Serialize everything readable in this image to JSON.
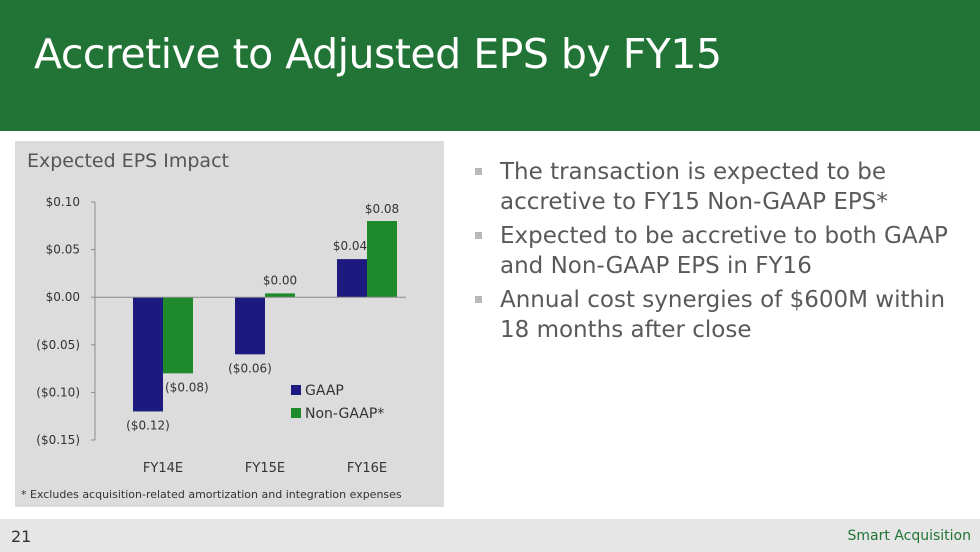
{
  "slide": {
    "title": "Accretive to Adjusted EPS by FY15",
    "page_number": "21",
    "footer_label": "Smart Acquisition",
    "bullets": [
      "The transaction is expected to be accretive to FY15 Non-GAAP EPS*",
      "Expected to be accretive to both GAAP and Non-GAAP EPS in FY16",
      "Annual cost synergies of $600M within 18 months after close"
    ],
    "footnote": "* Excludes acquisition-related amortization and integration expenses",
    "colors": {
      "header": "#217435",
      "gaap": "#1c1a7e",
      "non_gaap": "#1e8a2c"
    }
  },
  "chart_data": {
    "type": "bar",
    "title": "Expected EPS Impact",
    "categories": [
      "FY14E",
      "FY15E",
      "FY16E"
    ],
    "series": [
      {
        "name": "GAAP",
        "values": [
          -0.12,
          -0.06,
          0.04
        ],
        "labels": [
          "($0.12)",
          "($0.06)",
          "$0.04"
        ],
        "color": "#1c1a7e"
      },
      {
        "name": "Non-GAAP*",
        "values": [
          -0.08,
          0.004,
          0.08
        ],
        "labels": [
          "($0.08)",
          "$0.00",
          "$0.08"
        ],
        "color": "#1e8a2c"
      }
    ],
    "yticks": [
      0.1,
      0.05,
      0.0,
      -0.05,
      -0.1,
      -0.15
    ],
    "ytick_labels": [
      "$0.10",
      "$0.05",
      "$0.00",
      "($0.05)",
      "($0.10)",
      "($0.15)"
    ],
    "ylim": [
      -0.15,
      0.1
    ],
    "xlabel": "",
    "ylabel": "",
    "legend": "bottom-right",
    "grid": false
  }
}
